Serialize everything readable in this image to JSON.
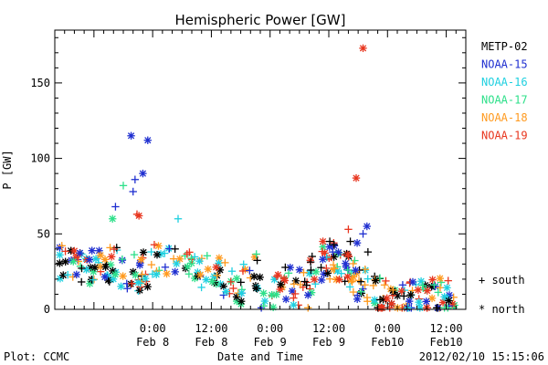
{
  "chart_data": {
    "type": "scatter",
    "title": "Hemispheric Power [GW]",
    "ylabel": "P [GW]",
    "xlabel": "Date and Time",
    "ylim": [
      0,
      185
    ],
    "xlim": [
      -10,
      32
    ],
    "x_unit_note": "",
    "yticks": [
      0,
      50,
      100,
      150
    ],
    "xticks": [
      {
        "x": 0,
        "time": "0:00",
        "date": "Feb 8"
      },
      {
        "x": 6,
        "time": "12:00",
        "date": "Feb 8"
      },
      {
        "x": 12,
        "time": "0:00",
        "date": "Feb 9"
      },
      {
        "x": 18,
        "time": "12:00",
        "date": "Feb 9"
      },
      {
        "x": 24,
        "time": "0:00",
        "date": "Feb10"
      },
      {
        "x": 30,
        "time": "12:00",
        "date": "Feb10"
      }
    ],
    "series": [
      {
        "name": "METP-02",
        "color": "#000000"
      },
      {
        "name": "NOAA-15",
        "color": "#1f2fd0"
      },
      {
        "name": "NOAA-16",
        "color": "#1fd0e0"
      },
      {
        "name": "NOAA-17",
        "color": "#2ee08a"
      },
      {
        "name": "NOAA-18",
        "color": "#ff9a1f"
      },
      {
        "name": "NOAA-19",
        "color": "#e8361f"
      }
    ],
    "marker_legend": [
      {
        "symbol": "+",
        "label": "south"
      },
      {
        "symbol": "*",
        "label": "north"
      }
    ],
    "points": [
      {
        "s": 1,
        "m": "*",
        "x": -2.2,
        "y": 115
      },
      {
        "s": 1,
        "m": "*",
        "x": -0.5,
        "y": 112
      },
      {
        "s": 1,
        "m": "*",
        "x": -1.0,
        "y": 90
      },
      {
        "s": 1,
        "m": "+",
        "x": -1.8,
        "y": 86
      },
      {
        "s": 1,
        "m": "+",
        "x": -2.0,
        "y": 78
      },
      {
        "s": 3,
        "m": "+",
        "x": -3.0,
        "y": 82
      },
      {
        "s": 1,
        "m": "+",
        "x": -3.8,
        "y": 68
      },
      {
        "s": 5,
        "m": "*",
        "x": -1.4,
        "y": 62
      },
      {
        "s": 5,
        "m": "+",
        "x": -1.6,
        "y": 63
      },
      {
        "s": 3,
        "m": "*",
        "x": -4.1,
        "y": 60
      },
      {
        "s": 2,
        "m": "+",
        "x": 2.6,
        "y": 60
      },
      {
        "s": 5,
        "m": "*",
        "x": 21.5,
        "y": 173
      },
      {
        "s": 5,
        "m": "*",
        "x": 20.8,
        "y": 87
      },
      {
        "s": 1,
        "m": "*",
        "x": 21.9,
        "y": 55
      },
      {
        "s": 5,
        "m": "+",
        "x": 20.0,
        "y": 53
      },
      {
        "s": 1,
        "m": "+",
        "x": 21.5,
        "y": 50
      },
      {
        "s": 0,
        "m": "+",
        "x": 20.2,
        "y": 45
      },
      {
        "s": 1,
        "m": "*",
        "x": 20.9,
        "y": 44
      },
      {
        "s": 0,
        "m": "+",
        "x": 22.0,
        "y": 38
      },
      {
        "s": 5,
        "m": "*",
        "x": 17.4,
        "y": 45
      },
      {
        "s": 1,
        "m": "+",
        "x": 18.4,
        "y": 38
      },
      {
        "s": 0,
        "m": "+",
        "x": 18.1,
        "y": 45
      }
    ]
  },
  "footer": {
    "left": "Plot: CCMC",
    "right": "2012/02/10 15:15:06"
  },
  "legend_title": "",
  "colors": {
    "axis": "#000000",
    "background": "#ffffff"
  }
}
